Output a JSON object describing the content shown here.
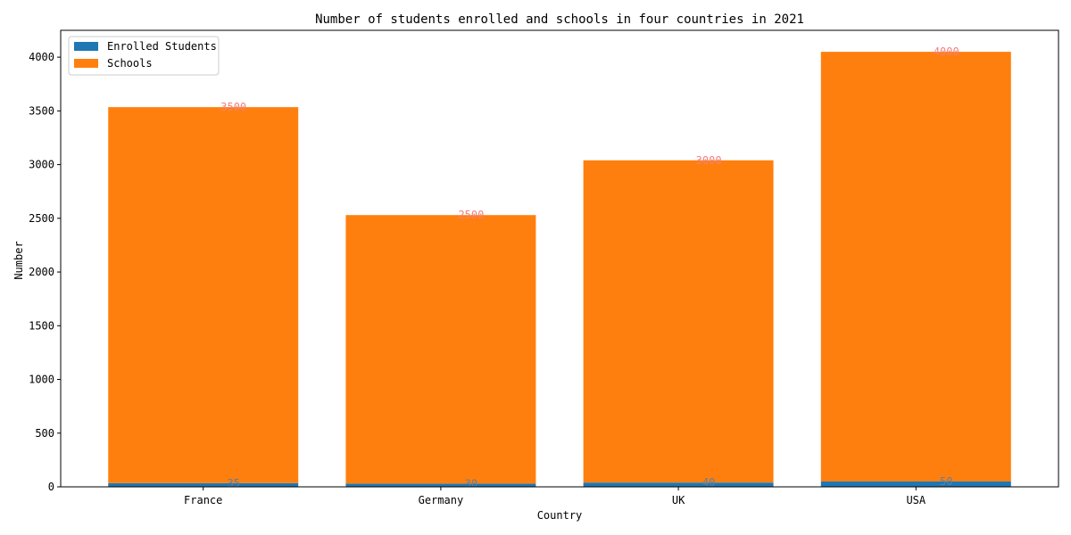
{
  "chart_data": {
    "type": "bar",
    "stacked": true,
    "title": "Number of students enrolled and schools in four countries in 2021",
    "xlabel": "Country",
    "ylabel": "Number",
    "categories": [
      "France",
      "Germany",
      "UK",
      "USA"
    ],
    "ylim": [
      0,
      4250
    ],
    "yticks": [
      0,
      500,
      1000,
      1500,
      2000,
      2500,
      3000,
      3500,
      4000
    ],
    "legend_position": "top-left",
    "grid": false,
    "series": [
      {
        "name": "Enrolled Students",
        "values": [
          35,
          30,
          40,
          50
        ],
        "color": "#1f77b4",
        "label_color": "#5f7f9f"
      },
      {
        "name": "Schools",
        "values": [
          3500,
          2500,
          3000,
          4000
        ],
        "color": "#ff7f0e",
        "label_color": "#f08080"
      }
    ]
  }
}
